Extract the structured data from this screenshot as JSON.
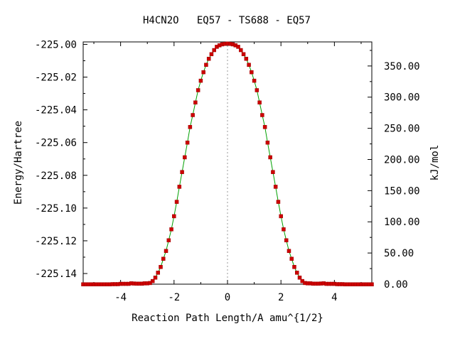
{
  "chart_data": {
    "type": "line",
    "title": "H4CN2O   EQ57 - TS688 - EQ57",
    "xlabel": "Reaction Path Length/A amu^{1/2}",
    "ylabel": "Energy/Hartree",
    "y2label": "kJ/mol",
    "xlim": [
      -5.4,
      5.4
    ],
    "ylim": [
      -225.1465,
      -224.9985
    ],
    "y2lim": [
      0.0,
      388.6
    ],
    "x_ticks": [
      -4,
      -2,
      0,
      2,
      4
    ],
    "x_tick_labels": [
      "-4",
      "-2",
      "0",
      "2",
      "4"
    ],
    "y_ticks": [
      -225.14,
      -225.12,
      -225.1,
      -225.08,
      -225.06,
      -225.04,
      -225.02,
      -225.0
    ],
    "y_tick_labels": [
      "-225.14",
      "-225.12",
      "-225.10",
      "-225.08",
      "-225.06",
      "-225.04",
      "-225.02",
      "-225.00"
    ],
    "y2_ticks": [
      0,
      50,
      100,
      150,
      200,
      250,
      300,
      350
    ],
    "y2_tick_labels": [
      "0.00",
      "50.00",
      "100.00",
      "150.00",
      "200.00",
      "250.00",
      "300.00",
      "350.00"
    ],
    "ts_marker_x": 0,
    "grid": false,
    "colors": {
      "line": "#00a000",
      "marker": "#cc0000",
      "marker_edge": "#a00000",
      "ts_line": "#999999"
    },
    "series": [
      {
        "x": [
          -5.4,
          -5.3,
          -5.2,
          -5.1,
          -5.0,
          -4.9,
          -4.8,
          -4.7,
          -4.6,
          -4.5,
          -4.4,
          -4.3,
          -4.2,
          -4.1,
          -4.0,
          -3.9,
          -3.8,
          -3.7,
          -3.6,
          -3.5,
          -3.4,
          -3.3,
          -3.2,
          -3.1,
          -3.0,
          -2.9,
          -2.8,
          -2.7,
          -2.6,
          -2.5,
          -2.4,
          -2.3,
          -2.2,
          -2.1,
          -2.0,
          -1.9,
          -1.8,
          -1.7,
          -1.6,
          -1.5,
          -1.4,
          -1.3,
          -1.2,
          -1.1,
          -1.0,
          -0.9,
          -0.8,
          -0.7,
          -0.6,
          -0.5,
          -0.4,
          -0.3,
          -0.2,
          -0.1,
          0.0,
          0.1,
          0.2,
          0.3,
          0.4,
          0.5,
          0.6,
          0.7,
          0.8,
          0.9,
          1.0,
          1.1,
          1.2,
          1.3,
          1.4,
          1.5,
          1.6,
          1.7,
          1.8,
          1.9,
          2.0,
          2.1,
          2.2,
          2.3,
          2.4,
          2.5,
          2.6,
          2.7,
          2.8,
          2.9,
          3.0,
          3.1,
          3.2,
          3.3,
          3.4,
          3.5,
          3.6,
          3.7,
          3.8,
          3.9,
          4.0,
          4.1,
          4.2,
          4.3,
          4.4,
          4.5,
          4.6,
          4.7,
          4.8,
          4.9,
          5.0,
          5.1,
          5.2,
          5.3,
          5.4
        ],
        "y": [
          -225.1466,
          -225.1466,
          -225.1466,
          -225.1466,
          -225.1466,
          -225.1466,
          -225.1466,
          -225.1466,
          -225.1466,
          -225.1466,
          -225.1466,
          -225.1465,
          -225.1465,
          -225.1465,
          -225.1463,
          -225.1463,
          -225.1463,
          -225.1463,
          -225.146,
          -225.1461,
          -225.1462,
          -225.1462,
          -225.1462,
          -225.146,
          -225.146,
          -225.1458,
          -225.1446,
          -225.1425,
          -225.1395,
          -225.136,
          -225.131,
          -225.1262,
          -225.1197,
          -225.113,
          -225.105,
          -225.0962,
          -225.087,
          -225.078,
          -225.069,
          -225.06,
          -225.0505,
          -225.0432,
          -225.0355,
          -225.028,
          -225.0222,
          -225.017,
          -225.0125,
          -225.0088,
          -225.006,
          -225.0035,
          -225.0015,
          -225.0006,
          -225.0,
          -224.9997,
          -224.9995,
          -224.9997,
          -225.0,
          -225.0006,
          -225.0015,
          -225.0035,
          -225.006,
          -225.0088,
          -225.0125,
          -225.017,
          -225.0222,
          -225.028,
          -225.0355,
          -225.0432,
          -225.0505,
          -225.06,
          -225.069,
          -225.078,
          -225.087,
          -225.0962,
          -225.105,
          -225.113,
          -225.1197,
          -225.1262,
          -225.131,
          -225.136,
          -225.1395,
          -225.1425,
          -225.1446,
          -225.1458,
          -225.146,
          -225.146,
          -225.1462,
          -225.1462,
          -225.1462,
          -225.1461,
          -225.146,
          -225.1463,
          -225.1463,
          -225.1463,
          -225.1463,
          -225.1465,
          -225.1465,
          -225.1465,
          -225.1466,
          -225.1466,
          -225.1466,
          -225.1466,
          -225.1466,
          -225.1466,
          -225.1466,
          -225.1466,
          -225.1466,
          -225.1466,
          -225.1466
        ]
      }
    ]
  }
}
